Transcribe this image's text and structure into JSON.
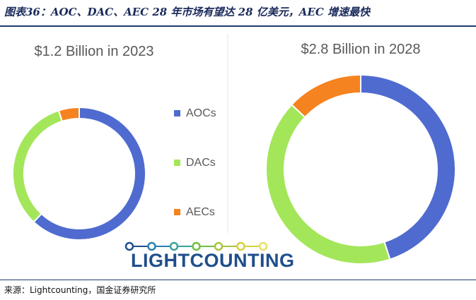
{
  "figure_title": "图表36：AOC、DAC、AEC 28 年市场有望达 28 亿美元，AEC 增速最快",
  "source_note": "来源：Lightcounting，国金证券研究所",
  "logo": {
    "text": "LIGHTCOUNTING",
    "dot_colors": [
      "#1f4e8c",
      "#2a7fb0",
      "#3aa39a",
      "#6fbf3f",
      "#a8c63a",
      "#d6d23a",
      "#e8e060"
    ]
  },
  "chart_data": [
    {
      "type": "pie",
      "donut": true,
      "title": "$1.2 Billion in 2023",
      "categories": [
        "AOCs",
        "DACs",
        "AECs"
      ],
      "values": [
        0.62,
        0.33,
        0.05
      ],
      "colors": [
        "#4f6bd0",
        "#a4e65a",
        "#f5831f"
      ]
    },
    {
      "type": "pie",
      "donut": true,
      "title": "$2.8 Billion in 2028",
      "categories": [
        "AOCs",
        "DACs",
        "AECs"
      ],
      "values": [
        0.45,
        0.42,
        0.13
      ],
      "colors": [
        "#4f6bd0",
        "#a4e65a",
        "#f5831f"
      ]
    }
  ],
  "legend": {
    "placement": "center",
    "items": [
      {
        "label": "AOCs",
        "color": "#4f6bd0"
      },
      {
        "label": "DACs",
        "color": "#a4e65a"
      },
      {
        "label": "AECs",
        "color": "#f5831f"
      }
    ]
  }
}
